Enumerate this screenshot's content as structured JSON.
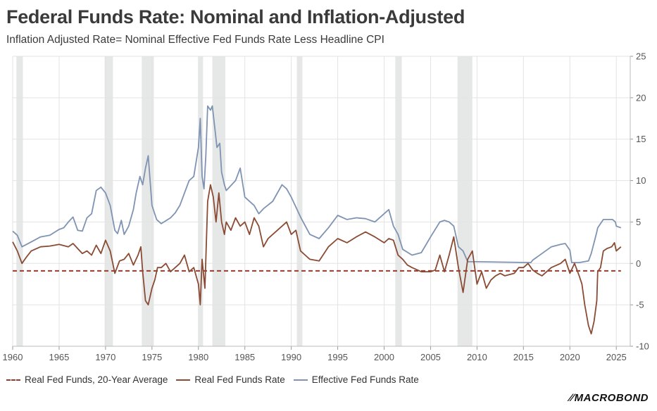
{
  "title": "Federal Funds Rate: Nominal and Inflation-Adjusted",
  "subtitle": "Inflation Adjusted Rate= Nominal Effective Fed Funds Rate Less Headline CPI",
  "logo": "MACROBOND",
  "colors": {
    "nominal": "#7f93b2",
    "real": "#8a4b34",
    "average": "#9a3a2c",
    "recession": "#e6e8e8",
    "grid": "#e3e3e3"
  },
  "legend": [
    {
      "label": "Real Fed Funds, 20-Year Average",
      "style": "dashed",
      "color": "#9a3a2c"
    },
    {
      "label": "Real Fed Funds Rate",
      "style": "solid",
      "color": "#8a4b34"
    },
    {
      "label": "Effective Fed Funds Rate",
      "style": "solid",
      "color": "#7f93b2"
    }
  ],
  "chart_data": {
    "type": "line",
    "title": "Federal Funds Rate: Nominal and Inflation-Adjusted",
    "subtitle": "Inflation Adjusted Rate= Nominal Effective Fed Funds Rate Less Headline CPI",
    "xlim": [
      1960,
      2026.5
    ],
    "ylim": [
      -10,
      25
    ],
    "x_ticks": [
      "1960",
      "1965",
      "1970",
      "1975",
      "1980",
      "1985",
      "1990",
      "1995",
      "2000",
      "2005",
      "2010",
      "2015",
      "2020",
      "2025"
    ],
    "y_ticks": [
      "25",
      "20",
      "15",
      "10",
      "5",
      "0",
      "-5",
      "-10"
    ],
    "y_axis_side": "right",
    "grid": true,
    "legend_position": "bottom-left",
    "recessions": [
      [
        1960.4,
        1961.1
      ],
      [
        1969.9,
        1970.8
      ],
      [
        1973.9,
        1975.2
      ],
      [
        1980.0,
        1980.5
      ],
      [
        1981.5,
        1982.9
      ],
      [
        1990.6,
        1991.2
      ],
      [
        2001.2,
        2001.9
      ],
      [
        2007.9,
        2009.5
      ]
    ],
    "series": [
      {
        "name": "Effective Fed Funds Rate",
        "color": "#7f93b2",
        "x": [
          1960.0,
          1960.5,
          1961.0,
          1961.5,
          1962.0,
          1963.0,
          1964.0,
          1965.0,
          1965.5,
          1966.0,
          1966.5,
          1967.0,
          1967.5,
          1968.0,
          1968.5,
          1969.0,
          1969.5,
          1970.0,
          1970.5,
          1971.0,
          1971.3,
          1971.7,
          1972.0,
          1972.5,
          1973.0,
          1973.3,
          1973.7,
          1974.0,
          1974.3,
          1974.6,
          1975.0,
          1975.5,
          1976.0,
          1977.0,
          1977.5,
          1978.0,
          1978.5,
          1979.0,
          1979.5,
          1980.0,
          1980.2,
          1980.4,
          1980.6,
          1980.8,
          1981.0,
          1981.3,
          1981.5,
          1981.8,
          1982.0,
          1982.3,
          1982.5,
          1982.8,
          1983.0,
          1984.0,
          1984.5,
          1985.0,
          1986.0,
          1986.5,
          1987.0,
          1988.0,
          1989.0,
          1989.5,
          1990.0,
          1991.0,
          1992.0,
          1993.0,
          1994.0,
          1995.0,
          1996.0,
          1997.0,
          1998.0,
          1999.0,
          2000.0,
          2000.5,
          2001.0,
          2001.5,
          2002.0,
          2003.0,
          2004.0,
          2005.0,
          2006.0,
          2006.5,
          2007.0,
          2007.5,
          2008.0,
          2008.5,
          2009.0,
          2010.0,
          2015.8,
          2016.0,
          2017.0,
          2018.0,
          2019.0,
          2019.5,
          2020.0,
          2020.2,
          2021.0,
          2022.0,
          2022.3,
          2022.6,
          2022.9,
          2023.0,
          2023.3,
          2023.6,
          2024.0,
          2024.6,
          2024.9,
          2025.0,
          2025.5
        ],
        "y": [
          3.9,
          3.4,
          2.0,
          2.3,
          2.6,
          3.2,
          3.4,
          4.1,
          4.3,
          5.0,
          5.6,
          4.0,
          3.9,
          5.5,
          6.0,
          8.8,
          9.2,
          8.5,
          7.0,
          4.0,
          3.6,
          5.2,
          3.5,
          4.5,
          6.5,
          8.5,
          10.5,
          9.5,
          11.5,
          13.0,
          7.0,
          5.3,
          4.8,
          5.5,
          6.1,
          7.0,
          8.5,
          10.0,
          10.5,
          14.0,
          17.5,
          10.5,
          9.0,
          13.0,
          19.0,
          18.5,
          19.0,
          16.0,
          14.0,
          14.5,
          11.0,
          9.5,
          8.8,
          10.0,
          11.5,
          8.0,
          7.0,
          6.0,
          6.6,
          7.5,
          9.5,
          9.0,
          8.0,
          5.6,
          3.5,
          3.0,
          4.3,
          5.8,
          5.3,
          5.5,
          5.4,
          5.0,
          6.0,
          6.5,
          4.5,
          3.5,
          1.7,
          1.0,
          1.3,
          3.2,
          5.0,
          5.2,
          5.0,
          4.5,
          2.0,
          1.5,
          0.2,
          0.2,
          0.1,
          0.4,
          1.2,
          2.0,
          2.3,
          2.4,
          1.6,
          0.1,
          0.1,
          0.3,
          1.2,
          2.5,
          3.8,
          4.3,
          4.8,
          5.3,
          5.3,
          5.3,
          5.0,
          4.5,
          4.3
        ]
      },
      {
        "name": "Real Fed Funds Rate",
        "color": "#8a4b34",
        "x": [
          1960.0,
          1960.5,
          1961.0,
          1961.5,
          1962.0,
          1963.0,
          1964.0,
          1965.0,
          1966.0,
          1966.5,
          1967.0,
          1967.5,
          1968.0,
          1968.5,
          1969.0,
          1969.5,
          1970.0,
          1970.5,
          1971.0,
          1971.5,
          1972.0,
          1972.5,
          1973.0,
          1973.5,
          1973.8,
          1974.0,
          1974.3,
          1974.6,
          1975.0,
          1975.3,
          1975.6,
          1976.0,
          1976.5,
          1977.0,
          1978.0,
          1978.5,
          1979.0,
          1979.5,
          1980.0,
          1980.2,
          1980.4,
          1980.7,
          1981.0,
          1981.3,
          1981.6,
          1981.9,
          1982.2,
          1982.5,
          1982.8,
          1983.0,
          1983.5,
          1984.0,
          1984.5,
          1985.0,
          1985.5,
          1986.0,
          1986.5,
          1987.0,
          1987.5,
          1988.0,
          1988.5,
          1989.0,
          1989.5,
          1990.0,
          1990.5,
          1991.0,
          1991.5,
          1992.0,
          1993.0,
          1994.0,
          1995.0,
          1996.0,
          1997.0,
          1998.0,
          1998.5,
          1999.0,
          2000.0,
          2000.5,
          2001.0,
          2001.5,
          2002.0,
          2002.5,
          2003.0,
          2004.0,
          2005.0,
          2005.5,
          2006.0,
          2006.5,
          2007.0,
          2007.5,
          2008.0,
          2008.5,
          2009.0,
          2009.5,
          2010.0,
          2010.5,
          2011.0,
          2011.5,
          2012.0,
          2012.5,
          2013.0,
          2014.0,
          2014.5,
          2015.0,
          2015.5,
          2016.0,
          2016.5,
          2017.0,
          2018.0,
          2019.0,
          2019.5,
          2020.0,
          2020.5,
          2021.0,
          2021.3,
          2021.6,
          2022.0,
          2022.3,
          2022.6,
          2022.9,
          2023.0,
          2023.3,
          2023.6,
          2024.0,
          2024.5,
          2024.8,
          2025.0,
          2025.5
        ],
        "y": [
          2.6,
          1.5,
          0.0,
          0.8,
          1.5,
          2.0,
          2.1,
          2.3,
          2.0,
          2.4,
          1.8,
          1.2,
          1.5,
          1.0,
          2.2,
          1.2,
          2.8,
          1.5,
          -1.2,
          0.3,
          0.5,
          1.2,
          -0.2,
          1.0,
          2.0,
          -1.0,
          -4.5,
          -5.0,
          -3.0,
          -2.0,
          -0.5,
          -0.5,
          0.0,
          -1.0,
          0.0,
          1.0,
          -1.0,
          -0.5,
          -2.5,
          -5.0,
          0.5,
          -3.0,
          7.5,
          9.5,
          8.0,
          5.0,
          8.5,
          5.0,
          3.5,
          5.0,
          4.0,
          5.5,
          4.5,
          5.0,
          3.5,
          5.5,
          4.5,
          2.0,
          3.0,
          3.5,
          4.0,
          4.5,
          5.0,
          3.5,
          4.0,
          1.5,
          1.0,
          0.5,
          0.3,
          2.0,
          3.0,
          2.5,
          3.2,
          3.8,
          3.5,
          3.2,
          2.5,
          3.0,
          2.8,
          1.0,
          0.5,
          -0.2,
          -0.5,
          -1.0,
          -1.0,
          -0.8,
          1.0,
          -1.0,
          1.0,
          3.2,
          -0.5,
          -3.5,
          0.5,
          1.5,
          -2.5,
          -1.0,
          -3.0,
          -2.0,
          -1.5,
          -1.2,
          -1.5,
          -1.2,
          -0.5,
          -0.5,
          0.0,
          -0.8,
          -1.2,
          -1.5,
          -0.5,
          0.0,
          0.5,
          -1.2,
          0.0,
          -1.5,
          -2.5,
          -5.0,
          -7.5,
          -8.5,
          -7.0,
          -4.5,
          -1.0,
          -0.5,
          1.5,
          1.8,
          2.0,
          2.5,
          1.5,
          2.0
        ]
      }
    ],
    "reference_lines": [
      {
        "name": "Real Fed Funds, 20-Year Average",
        "y": -0.9,
        "x": [
          1960,
          2025.5
        ],
        "style": "dashed",
        "color": "#9a3a2c"
      }
    ]
  }
}
